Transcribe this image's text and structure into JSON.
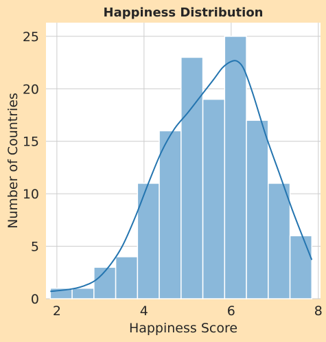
{
  "chart_data": {
    "type": "bar",
    "subtype": "histogram-with-kde",
    "title": "Happiness Distribution",
    "xlabel": "Happiness Score",
    "ylabel": "Number of Countries",
    "xlim": [
      1.75,
      8.05
    ],
    "ylim": [
      0,
      26.3
    ],
    "xticks": [
      2,
      4,
      6,
      8
    ],
    "yticks": [
      0,
      5,
      10,
      15,
      20,
      25
    ],
    "grid": true,
    "bins": [
      {
        "x0": 1.85,
        "x1": 2.35,
        "count": 1
      },
      {
        "x0": 2.35,
        "x1": 2.85,
        "count": 1
      },
      {
        "x0": 2.85,
        "x1": 3.35,
        "count": 3
      },
      {
        "x0": 3.35,
        "x1": 3.85,
        "count": 4
      },
      {
        "x0": 3.85,
        "x1": 4.35,
        "count": 11
      },
      {
        "x0": 4.35,
        "x1": 4.85,
        "count": 16
      },
      {
        "x0": 4.85,
        "x1": 5.35,
        "count": 23
      },
      {
        "x0": 5.35,
        "x1": 5.85,
        "count": 19
      },
      {
        "x0": 5.85,
        "x1": 6.35,
        "count": 25
      },
      {
        "x0": 6.35,
        "x1": 6.85,
        "count": 17
      },
      {
        "x0": 6.85,
        "x1": 7.35,
        "count": 11
      },
      {
        "x0": 7.35,
        "x1": 7.85,
        "count": 6
      }
    ],
    "kde": {
      "x": [
        1.85,
        2.3,
        2.6,
        2.9,
        3.2,
        3.5,
        3.8,
        4.1,
        4.4,
        4.7,
        5.0,
        5.3,
        5.6,
        5.8,
        6.0,
        6.15,
        6.3,
        6.5,
        6.8,
        7.1,
        7.4,
        7.65,
        7.85
      ],
      "y": [
        0.7,
        0.9,
        1.2,
        1.8,
        3.1,
        5.0,
        7.8,
        11.0,
        14.0,
        16.2,
        17.7,
        19.3,
        20.9,
        22.0,
        22.6,
        22.6,
        21.8,
        19.5,
        15.5,
        12.0,
        8.5,
        5.8,
        3.7
      ]
    },
    "colors": {
      "bar_fill": "#8AB8DA",
      "bar_edge": "#FFFFFF",
      "kde_line": "#2374AF",
      "plot_background": "#FFFFFF",
      "figure_background": "#FFE3B5",
      "grid": "#CCCCCC"
    }
  }
}
